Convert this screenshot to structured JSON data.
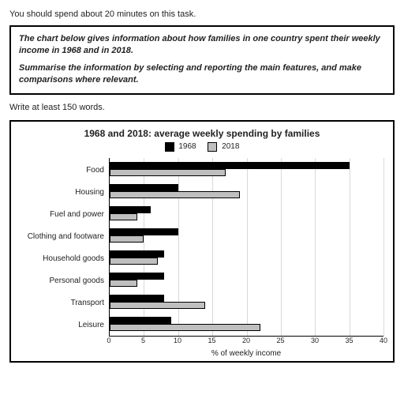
{
  "intro_text": "You should spend about 20 minutes on this task.",
  "task_prompt_1": "The chart below gives information about how families in one country spent their weekly income in 1968 and in 2018.",
  "task_prompt_2": "Summarise the information by selecting and reporting the main features, and make comparisons where relevant.",
  "min_words": "Write at least 150 words.",
  "chart": {
    "type": "grouped_horizontal_bar",
    "title": "1968 and 2018: average weekly spending by families",
    "series": [
      {
        "name": "1968",
        "color": "#000000"
      },
      {
        "name": "2018",
        "color": "#bfbfbf"
      }
    ],
    "categories": [
      {
        "label": "Food",
        "values": [
          35,
          17
        ]
      },
      {
        "label": "Housing",
        "values": [
          10,
          19
        ]
      },
      {
        "label": "Fuel and power",
        "values": [
          6,
          4
        ]
      },
      {
        "label": "Clothing and footware",
        "values": [
          10,
          5
        ]
      },
      {
        "label": "Household goods",
        "values": [
          8,
          7
        ]
      },
      {
        "label": "Personal goods",
        "values": [
          8,
          4
        ]
      },
      {
        "label": "Transport",
        "values": [
          8,
          14
        ]
      },
      {
        "label": "Leisure",
        "values": [
          9,
          22
        ]
      }
    ],
    "x_axis": {
      "label": "% of weekly income",
      "min": 0,
      "max": 40,
      "ticks": [
        0,
        5,
        10,
        15,
        20,
        25,
        30,
        35,
        40
      ]
    },
    "background_color": "#ffffff",
    "grid_color": "#d9d9d9",
    "label_fontsize": 10,
    "tick_fontsize": 9
  }
}
